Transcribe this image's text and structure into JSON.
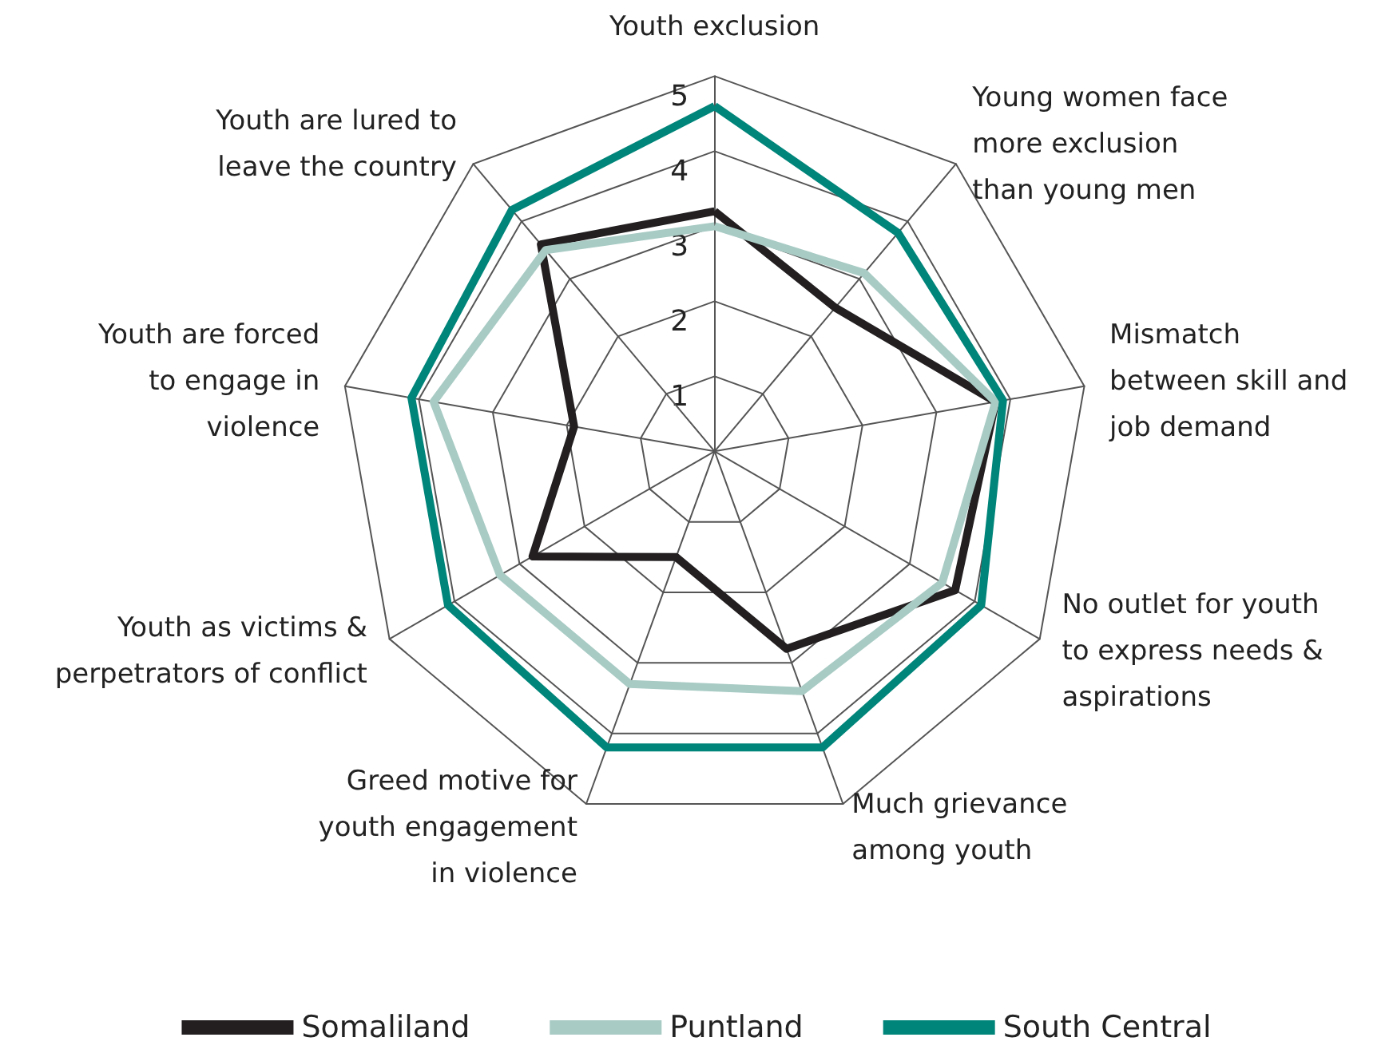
{
  "chart_data": {
    "type": "radar",
    "categories": [
      "Youth exclusion",
      "Young women face\nmore exclusion\nthan young men",
      "Mismatch\nbetween skill and\njob demand",
      "No outlet for youth\nto express needs &\naspirations",
      "Much grievance\namong youth",
      "Greed motive for\nyouth engagement\nin violence",
      "Youth as victims &\nperpetrators of conflict",
      "Youth are forced\nto engage in\nviolence",
      "Youth are lured to\nleave the country"
    ],
    "series": [
      {
        "name": "Somaliland",
        "color": "#231f20",
        "values": [
          3.2,
          2.5,
          3.8,
          3.7,
          2.8,
          1.5,
          2.8,
          1.9,
          3.6
        ]
      },
      {
        "name": "Puntland",
        "color": "#a8cbc4",
        "values": [
          3.0,
          3.1,
          3.8,
          3.5,
          3.4,
          3.3,
          3.3,
          3.8,
          3.5
        ]
      },
      {
        "name": "South Central",
        "color": "#00857a",
        "values": [
          4.6,
          3.8,
          3.9,
          4.1,
          4.2,
          4.2,
          4.1,
          4.1,
          4.2
        ]
      }
    ],
    "ylim": [
      0,
      5
    ],
    "yticks": [
      1,
      2,
      3,
      4,
      5
    ],
    "grid": true,
    "legend": "bottom",
    "marker": "none",
    "line_style": "solid"
  }
}
